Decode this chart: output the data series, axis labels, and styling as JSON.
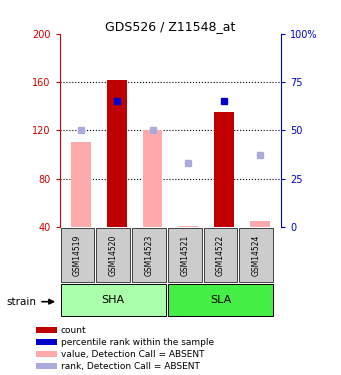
{
  "title": "GDS526 / Z11548_at",
  "samples": [
    "GSM14519",
    "GSM14520",
    "GSM14523",
    "GSM14521",
    "GSM14522",
    "GSM14524"
  ],
  "ylim_left": [
    40,
    200
  ],
  "ylim_right": [
    0,
    100
  ],
  "yticks_left": [
    40,
    80,
    120,
    160,
    200
  ],
  "yticks_right": [
    0,
    25,
    50,
    75,
    100
  ],
  "ytick_labels_right": [
    "0",
    "25",
    "50",
    "75",
    "100%"
  ],
  "bar_values": [
    null,
    162,
    null,
    null,
    135,
    null
  ],
  "bar_rank": [
    null,
    65,
    null,
    null,
    65,
    null
  ],
  "absent_value": [
    110,
    null,
    120,
    41,
    null,
    45
  ],
  "absent_rank_pct": [
    50,
    null,
    50,
    33,
    null,
    37
  ],
  "bar_color": "#c00000",
  "rank_color": "#0000cc",
  "absent_value_color": "#ffaaaa",
  "absent_rank_color": "#aaaadd",
  "left_axis_color": "#cc0000",
  "right_axis_color": "#0000cc",
  "group_box_color_SHA": "#aaffaa",
  "group_box_color_SLA": "#44ee44",
  "sample_box_color": "#cccccc",
  "bar_width": 0.55
}
